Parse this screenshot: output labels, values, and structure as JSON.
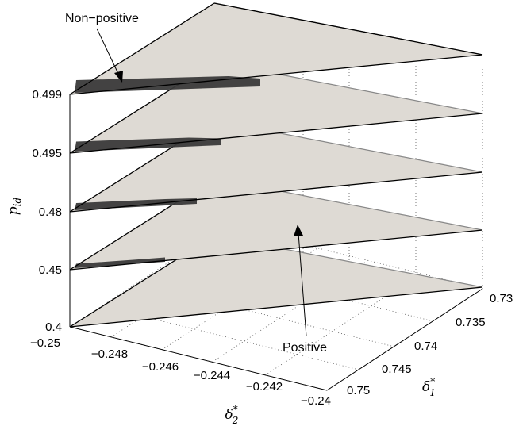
{
  "chart_data": {
    "type": "3d-stacked-surface",
    "zlabel": "p_id",
    "xlabel": "δ*_2",
    "ylabel": "δ*_1",
    "x_ticks": [
      "−0.25",
      "−0.248",
      "−0.246",
      "−0.244",
      "−0.242",
      "−0.24"
    ],
    "y_ticks": [
      "0.73",
      "0.735",
      "0.74",
      "0.745",
      "0.75"
    ],
    "z_levels": [
      "0.4",
      "0.45",
      "0.48",
      "0.495",
      "0.499"
    ],
    "layers": [
      {
        "p_id": "0.4",
        "non_positive_region": "none"
      },
      {
        "p_id": "0.45",
        "non_positive_region": "small"
      },
      {
        "p_id": "0.48",
        "non_positive_region": "medium"
      },
      {
        "p_id": "0.495",
        "non_positive_region": "large"
      },
      {
        "p_id": "0.499",
        "non_positive_region": "largest"
      }
    ],
    "annotations": [
      "Non−positive",
      "Positive"
    ],
    "colors": {
      "surface": "#dedad4",
      "non_positive": "#3a3a3a",
      "edge": "#000000"
    },
    "grid": true
  }
}
